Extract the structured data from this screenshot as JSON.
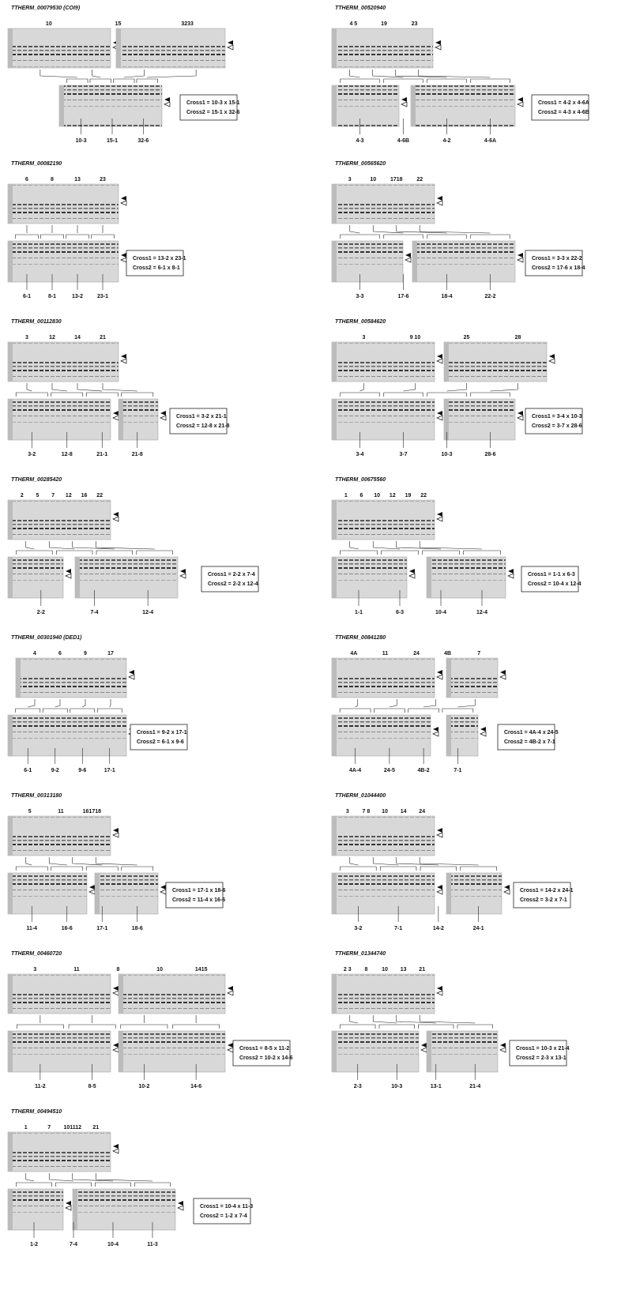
{
  "panels": [
    {
      "title": "TTHERM_00079530 (COI9)",
      "top_labels": [
        "10",
        "15",
        "3233"
      ],
      "bottom_labels": [
        "10-3",
        "15-1",
        "32-6"
      ],
      "cross1": "Cross1 = 10-3 x 15-1",
      "cross2": "Cross2 = 15-1 x 32-6"
    },
    {
      "title": "TTHERM_00520940",
      "top_labels": [
        "4 5",
        "19",
        "23"
      ],
      "bottom_labels": [
        "4-3",
        "4-6B",
        "4-2",
        "4-6A"
      ],
      "cross1": "Cross1 = 4-2 x 4-6A",
      "cross2": "Cross2 = 4-3 x 4-6B"
    },
    {
      "title": "TTHERM_00082190",
      "top_labels": [
        "6",
        "8",
        "13",
        "23"
      ],
      "bottom_labels": [
        "6-1",
        "8-1",
        "13-2",
        "23-1"
      ],
      "cross1": "Cross1 = 13-2 x 23-1",
      "cross2": "Cross2 = 6-1 x 8-1"
    },
    {
      "title": "TTHERM_00565620",
      "top_labels": [
        "3",
        "10",
        "1718",
        "22"
      ],
      "bottom_labels": [
        "3-3",
        "17-6",
        "18-4",
        "22-2"
      ],
      "cross1": "Cross1 = 3-3 x 22-2",
      "cross2": "Cross2 = 17-6 x 18-4"
    },
    {
      "title": "TTHERM_00112830",
      "top_labels": [
        "3",
        "12",
        "14",
        "21"
      ],
      "bottom_labels": [
        "3-2",
        "12-8",
        "21-1",
        "21-8"
      ],
      "cross1": "Cross1 = 3-2 x 21-1",
      "cross2": "Cross2 = 12-8 x 21-8"
    },
    {
      "title": "TTHERM_00584620",
      "top_labels": [
        "3",
        "9 10",
        "25",
        "28"
      ],
      "bottom_labels": [
        "3-4",
        "3-7",
        "10-3",
        "28-6"
      ],
      "cross1": "Cross1 = 3-4 x 10-3",
      "cross2": "Cross2 = 3-7 x 28-6"
    },
    {
      "title": "TTHERM_00285420",
      "top_labels": [
        "2",
        "5",
        "7",
        "12",
        "16",
        "22"
      ],
      "bottom_labels": [
        "2-2",
        "7-4",
        "12-4"
      ],
      "cross1": "Cross1 = 2-2 x 7-4",
      "cross2": "Cross2 = 2-2 x 12-4"
    },
    {
      "title": "TTHERM_00675560",
      "top_labels": [
        "1",
        "6",
        "10",
        "12",
        "19",
        "22"
      ],
      "bottom_labels": [
        "1-1",
        "6-3",
        "10-4",
        "12-4"
      ],
      "cross1": "Cross1 = 1-1 x 6-3",
      "cross2": "Cross2 = 10-4 x 12-4"
    },
    {
      "title": "TTHERM_00301940 (DED1)",
      "top_labels": [
        "4",
        "6",
        "9",
        "17"
      ],
      "bottom_labels": [
        "6-1",
        "9-2",
        "9-6",
        "17-1"
      ],
      "cross1": "Cross1 = 9-2 x 17-1",
      "cross2": "Cross2 = 6-1 x 9-6"
    },
    {
      "title": "TTHERM_00841280",
      "top_labels": [
        "4A",
        "11",
        "24",
        "4B",
        "7"
      ],
      "bottom_labels": [
        "4A-4",
        "24-5",
        "4B-2",
        "7-1"
      ],
      "cross1": "Cross1 = 4A-4 x 24-5",
      "cross2": "Cross2 = 4B-2 x 7-1"
    },
    {
      "title": "TTHERM_00313180",
      "top_labels": [
        "5",
        "11",
        "161718"
      ],
      "bottom_labels": [
        "11-4",
        "16-6",
        "17-1",
        "18-6"
      ],
      "cross1": "Cross1 = 17-1 x 18-6",
      "cross2": "Cross2 = 11-4 x 16-6"
    },
    {
      "title": "TTHERM_01044400",
      "top_labels": [
        "3",
        "7 8",
        "10",
        "14",
        "24"
      ],
      "bottom_labels": [
        "3-2",
        "7-1",
        "14-2",
        "24-1"
      ],
      "cross1": "Cross1 = 14-2 x 24-1",
      "cross2": "Cross2 = 3-2 x 7-1"
    },
    {
      "title": "TTHERM_00460720",
      "top_labels": [
        "3",
        "11",
        "8",
        "10",
        "1415"
      ],
      "bottom_labels": [
        "11-2",
        "8-5",
        "10-2",
        "14-6"
      ],
      "cross1": "Cross1 = 8-5 x 11-2",
      "cross2": "Cross2 = 10-2 x 14-6"
    },
    {
      "title": "TTHERM_01344740",
      "top_labels": [
        "2 3",
        "8",
        "10",
        "13",
        "21"
      ],
      "bottom_labels": [
        "2-3",
        "10-3",
        "13-1",
        "21-4"
      ],
      "cross1": "Cross1 = 10-3 x 21-4",
      "cross2": "Cross2 = 2-3 x 13-1"
    },
    {
      "title": "TTHERM_00494510",
      "top_labels": [
        "1",
        "7",
        "101112",
        "21"
      ],
      "bottom_labels": [
        "1-2",
        "7-4",
        "10-4",
        "11-3"
      ],
      "cross1": "Cross1 = 10-4 x 11-3",
      "cross2": "Cross2 = 1-2 x 7-4"
    }
  ]
}
